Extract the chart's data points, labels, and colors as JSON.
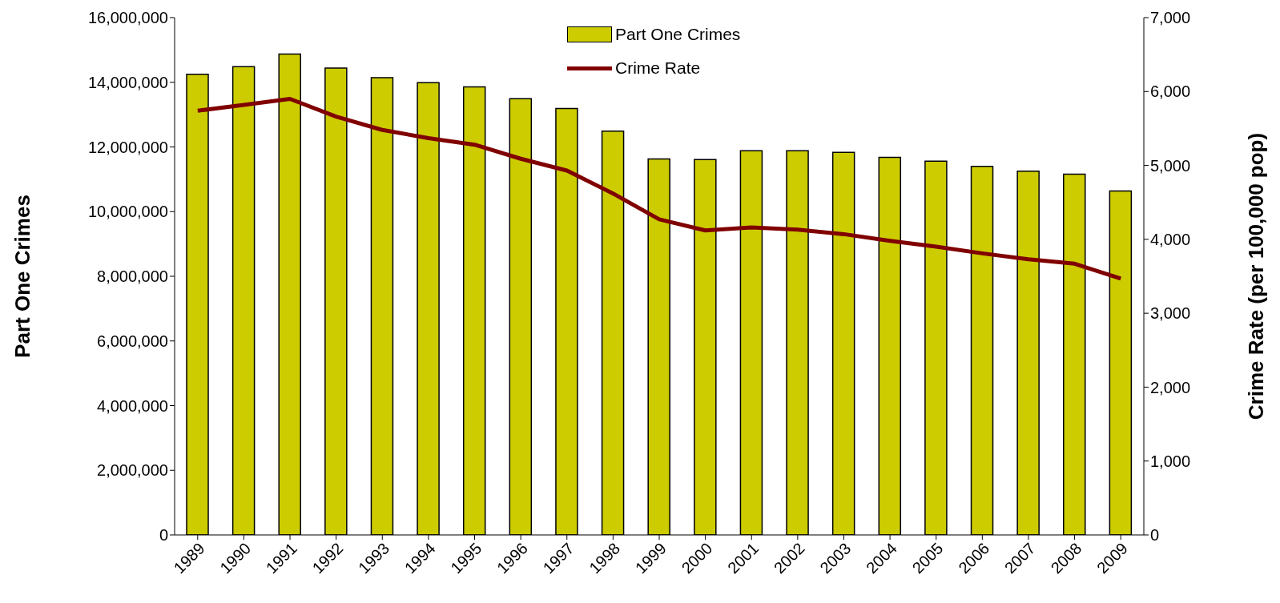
{
  "chart_data": {
    "type": "bar",
    "categories": [
      "1989",
      "1990",
      "1991",
      "1992",
      "1993",
      "1994",
      "1995",
      "1996",
      "1997",
      "1998",
      "1999",
      "2000",
      "2001",
      "2002",
      "2003",
      "2004",
      "2005",
      "2006",
      "2007",
      "2008",
      "2009"
    ],
    "series": [
      {
        "name": "Part One Crimes",
        "color": "#cccc00",
        "values": [
          14250000,
          14480000,
          14870000,
          14440000,
          14140000,
          13990000,
          13860000,
          13490000,
          13190000,
          12490000,
          11630000,
          11610000,
          11880000,
          11880000,
          11830000,
          11680000,
          11560000,
          11400000,
          11250000,
          11160000,
          10640000
        ]
      },
      {
        "name": "Crime Rate",
        "type": "line",
        "axis": "y2",
        "color": "#800000",
        "values": [
          5740,
          5820,
          5900,
          5660,
          5480,
          5370,
          5280,
          5090,
          4930,
          4620,
          4270,
          4120,
          4160,
          4130,
          4070,
          3980,
          3900,
          3810,
          3730,
          3670,
          3470
        ]
      }
    ],
    "ylabel": "Part One Crimes",
    "y2label": "Crime Rate (per 100,000 pop)",
    "ylim": [
      0,
      16000000
    ],
    "yticks": [
      {
        "value": 0,
        "label": "0"
      },
      {
        "value": 2000000,
        "label": "2,000,000"
      },
      {
        "value": 4000000,
        "label": "4,000,000"
      },
      {
        "value": 6000000,
        "label": "6,000,000"
      },
      {
        "value": 8000000,
        "label": "8,000,000"
      },
      {
        "value": 10000000,
        "label": "10,000,000"
      },
      {
        "value": 12000000,
        "label": "12,000,000"
      },
      {
        "value": 14000000,
        "label": "14,000,000"
      },
      {
        "value": 16000000,
        "label": "16,000,000"
      }
    ],
    "y2lim": [
      0,
      7000
    ],
    "y2ticks": [
      {
        "value": 0,
        "label": "0"
      },
      {
        "value": 1000,
        "label": "1,000"
      },
      {
        "value": 2000,
        "label": "2,000"
      },
      {
        "value": 3000,
        "label": "3,000"
      },
      {
        "value": 4000,
        "label": "4,000"
      },
      {
        "value": 5000,
        "label": "5,000"
      },
      {
        "value": 6000,
        "label": "6,000"
      },
      {
        "value": 7000,
        "label": "7,000"
      }
    ],
    "legend": "top",
    "grid": false,
    "marker": "none"
  }
}
